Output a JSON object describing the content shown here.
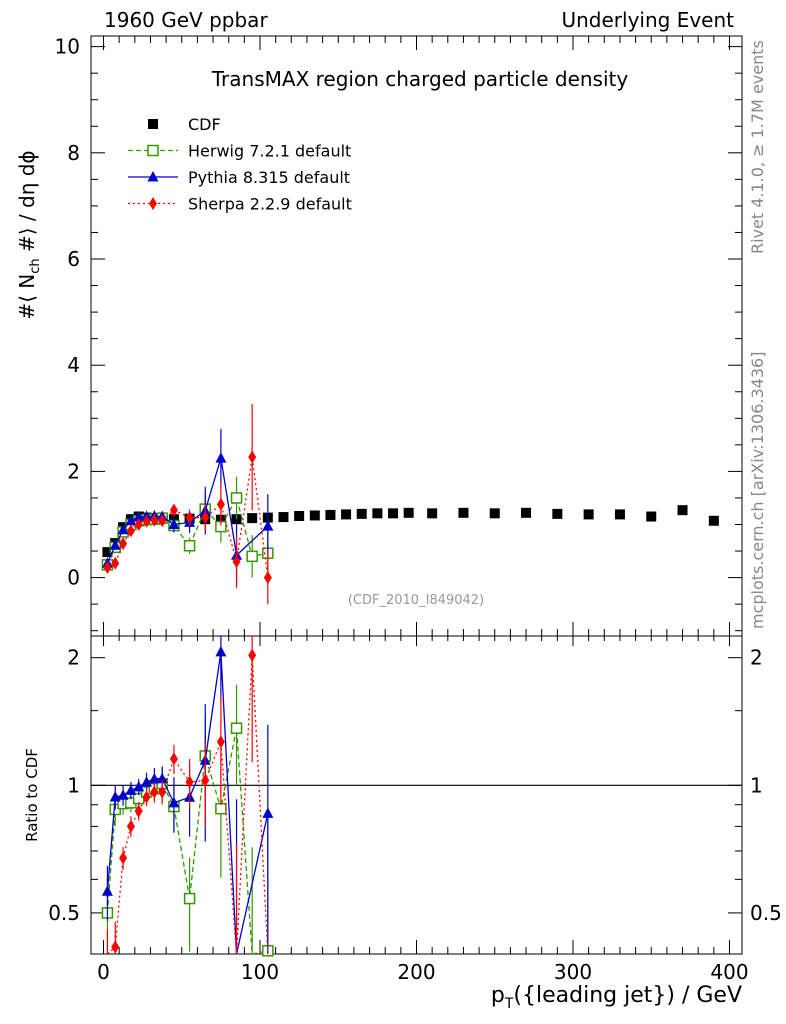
{
  "header": {
    "left": "1960 GeV ppbar",
    "right": "Underlying Event"
  },
  "side_labels": {
    "version": "Rivet 4.1.0, ≥ 1.7M events",
    "source": "mcplots.cern.ch [arXiv:1306.3436]"
  },
  "chart_data": {
    "type": "scatter",
    "title": "TransMAX region charged particle density",
    "xlabel": "p_T({leading jet}) / GeV",
    "ylabel": "#⟨ N_ch #⟩ / dη dϕ",
    "ratio_ylabel": "Ratio to CDF",
    "watermark": "(CDF_2010_I849042)",
    "xlim": [
      -8,
      408
    ],
    "ylim": [
      -1.1,
      10.2
    ],
    "ratio_ylim": [
      0.4,
      2.25
    ],
    "x_ticks": [
      0,
      100,
      200,
      300,
      400
    ],
    "y_ticks": [
      0,
      2,
      4,
      6,
      8,
      10
    ],
    "ratio_ticks": [
      0.5,
      1,
      2
    ],
    "legend_position": "top-left",
    "data": {
      "name": "CDF",
      "color": "#000000",
      "x": [
        2.5,
        7.5,
        12.5,
        17.5,
        22.5,
        27.5,
        32.5,
        37.5,
        45,
        55,
        65,
        75,
        85,
        95,
        105,
        115,
        125,
        135,
        145,
        155,
        165,
        175,
        185,
        195,
        210,
        230,
        250,
        270,
        290,
        310,
        330,
        350,
        370,
        390
      ],
      "values": [
        0.48,
        0.65,
        0.95,
        1.1,
        1.15,
        1.13,
        1.12,
        1.11,
        1.1,
        1.11,
        1.1,
        1.09,
        1.1,
        1.12,
        1.13,
        1.14,
        1.16,
        1.17,
        1.18,
        1.19,
        1.2,
        1.21,
        1.21,
        1.22,
        1.21,
        1.22,
        1.21,
        1.22,
        1.2,
        1.19,
        1.19,
        1.15,
        1.27,
        1.07
      ]
    },
    "series": [
      {
        "name": "Herwig 7.2.1 default",
        "color": "#339900",
        "marker": "open-square",
        "line": "dashed",
        "x": [
          2.5,
          7.5,
          12.5,
          17.5,
          22.5,
          27.5,
          32.5,
          37.5,
          45,
          55,
          65,
          75,
          85,
          95,
          105
        ],
        "values": [
          0.24,
          0.57,
          0.86,
          1.0,
          1.07,
          1.09,
          1.1,
          1.12,
          0.98,
          0.6,
          1.29,
          0.96,
          1.5,
          0.4,
          0.46
        ],
        "errors": [
          0.05,
          0.05,
          0.05,
          0.05,
          0.06,
          0.06,
          0.07,
          0.1,
          0.12,
          0.15,
          0.3,
          0.3,
          0.4,
          0.4,
          0.5
        ]
      },
      {
        "name": "Pythia 8.315 default",
        "color": "#0000cc",
        "marker": "filled-triangle",
        "line": "solid",
        "x": [
          2.5,
          7.5,
          12.5,
          17.5,
          22.5,
          27.5,
          32.5,
          37.5,
          45,
          55,
          65,
          75,
          85,
          105
        ],
        "values": [
          0.27,
          0.61,
          0.9,
          1.07,
          1.14,
          1.15,
          1.16,
          1.15,
          1.0,
          1.04,
          1.26,
          2.25,
          0.42,
          0.97
        ],
        "errors": [
          0.04,
          0.04,
          0.05,
          0.05,
          0.05,
          0.06,
          0.07,
          0.08,
          0.15,
          0.2,
          0.45,
          0.55,
          0.6,
          0.6
        ]
      },
      {
        "name": "Sherpa 2.2.9 default",
        "color": "#ff0000",
        "marker": "filled-diamond",
        "line": "dotted",
        "x": [
          2.5,
          7.5,
          12.5,
          17.5,
          22.5,
          27.5,
          32.5,
          37.5,
          45,
          55,
          65,
          75,
          85,
          95,
          105
        ],
        "values": [
          0.19,
          0.27,
          0.64,
          0.88,
          1.0,
          1.06,
          1.08,
          1.07,
          1.27,
          1.13,
          1.13,
          1.38,
          0.3,
          2.27,
          0.0
        ],
        "errors": [
          0.03,
          0.04,
          0.04,
          0.05,
          0.05,
          0.05,
          0.06,
          0.07,
          0.1,
          0.15,
          0.25,
          0.4,
          0.5,
          1.0,
          0.5
        ]
      }
    ]
  }
}
